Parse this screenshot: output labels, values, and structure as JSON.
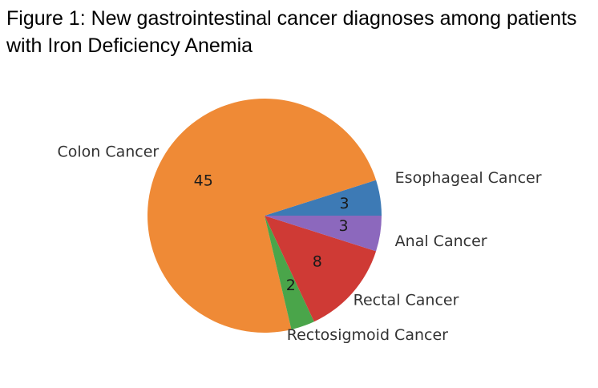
{
  "figure": {
    "title": "Figure 1: New gastrointestinal cancer diagnoses among patients with Iron Deficiency Anemia"
  },
  "chart_data": {
    "type": "pie",
    "title": "Figure 1: New gastrointestinal cancer diagnoses among patients with Iron Deficiency Anemia",
    "start_angle_deg": 0,
    "direction": "counterclockwise",
    "categories": [
      "Esophageal Cancer",
      "Colon Cancer",
      "Rectosigmoid Cancer",
      "Rectal Cancer",
      "Anal Cancer"
    ],
    "values": [
      3,
      45,
      2,
      8,
      3
    ],
    "value_labels": [
      "3",
      "45",
      "2",
      "8",
      "3"
    ],
    "colors": [
      "#3d7ab5",
      "#ef8a36",
      "#4aa54a",
      "#cf3a35",
      "#8c68bd"
    ],
    "legend": "none",
    "grid": false
  }
}
